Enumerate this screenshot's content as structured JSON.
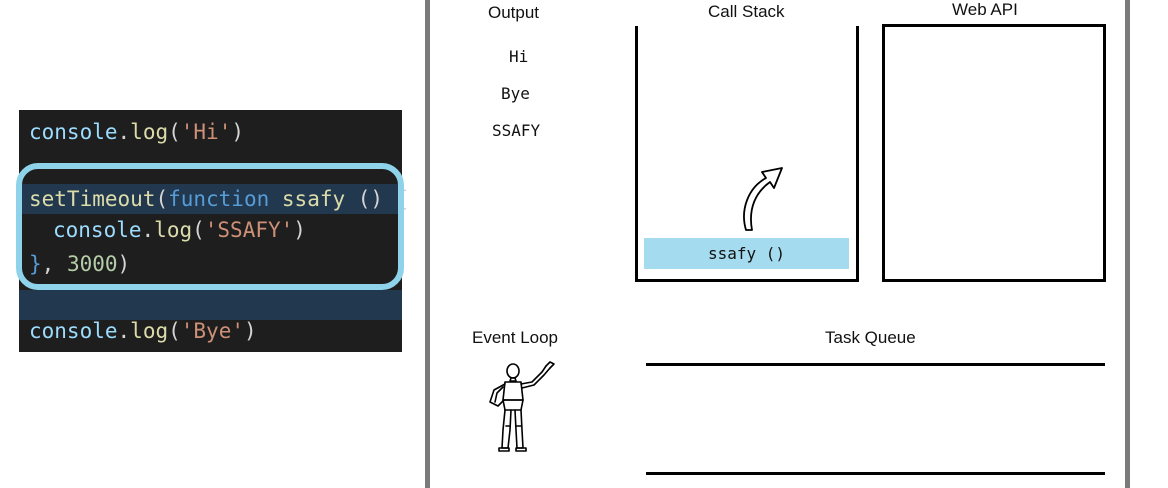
{
  "code": {
    "line1": {
      "obj": "console",
      "method": "log",
      "open": "(",
      "str": "'Hi'",
      "close": ")"
    },
    "line2": {
      "fn": "setTimeout",
      "open": "(",
      "kw": "function",
      "name": "ssafy",
      "rest": " () {"
    },
    "line3": {
      "obj": "console",
      "method": "log",
      "open": "(",
      "str": "'SSAFY'",
      "close": ")"
    },
    "line4": {
      "brace": "}",
      "comma": ", ",
      "num": "3000",
      "close": ")"
    },
    "line5": {
      "obj": "console",
      "method": "log",
      "open": "(",
      "str": "'Bye'",
      "close": ")"
    }
  },
  "diagram": {
    "output_label": "Output",
    "output_lines": [
      "Hi",
      "Bye",
      "SSAFY"
    ],
    "call_stack_label": "Call Stack",
    "call_stack_frame": "ssafy ()",
    "web_api_label": "Web API",
    "event_loop_label": "Event Loop",
    "task_queue_label": "Task Queue"
  },
  "colors": {
    "code_background": "#1e1e1e",
    "highlight_border": "#8fd3ea",
    "stack_frame_fill": "#a5dbee"
  }
}
